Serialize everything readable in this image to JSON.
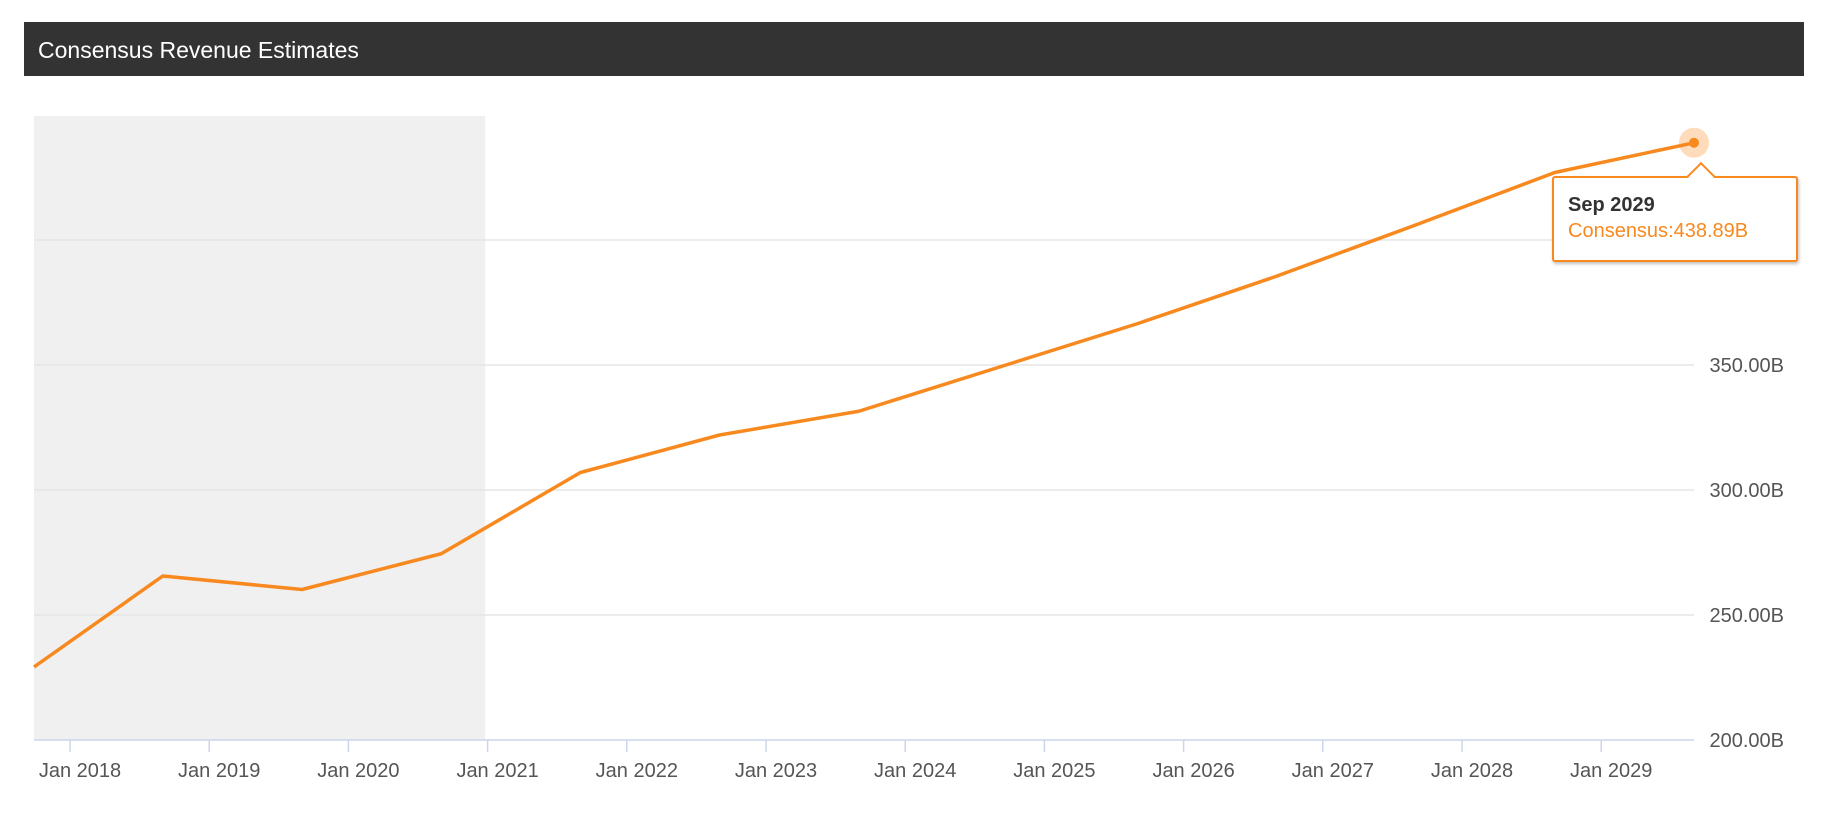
{
  "header": {
    "title": "Consensus Revenue Estimates"
  },
  "colors": {
    "line": "#f7891f",
    "header_bg": "#333333",
    "shade": "#f0f0f0",
    "grid": "#e6e6e6"
  },
  "tooltip": {
    "date": "Sep 2029",
    "series_label": "Consensus",
    "value": "438.89B"
  },
  "chart_data": {
    "type": "line",
    "x_ticks": [
      "Jan 2018",
      "Jan 2019",
      "Jan 2020",
      "Jan 2021",
      "Jan 2022",
      "Jan 2023",
      "Jan 2024",
      "Jan 2025",
      "Jan 2026",
      "Jan 2027",
      "Jan 2028",
      "Jan 2029"
    ],
    "y_ticks": [
      "200.00B",
      "250.00B",
      "300.00B",
      "350.00B"
    ],
    "ylim": [
      200,
      450
    ],
    "y_unit": "B",
    "grid": true,
    "shaded_region": {
      "from": "Sep 2017",
      "to": "Sep 2020",
      "meaning": "historical"
    },
    "series": [
      {
        "x": [
          "Sep 2017",
          "Sep 2018",
          "Sep 2019",
          "Sep 2020",
          "Sep 2021",
          "Sep 2022",
          "Sep 2023",
          "Sep 2024",
          "Sep 2025",
          "Sep 2026",
          "Sep 2027",
          "Sep 2028",
          "Sep 2029"
        ],
        "values": [
          229.2,
          265.6,
          260.2,
          274.5,
          307.0,
          322.0,
          331.5,
          349.0,
          366.5,
          385.5,
          406.0,
          427.0,
          438.89
        ]
      }
    ],
    "highlight_point": {
      "x": "Sep 2029",
      "value": 438.89
    }
  }
}
